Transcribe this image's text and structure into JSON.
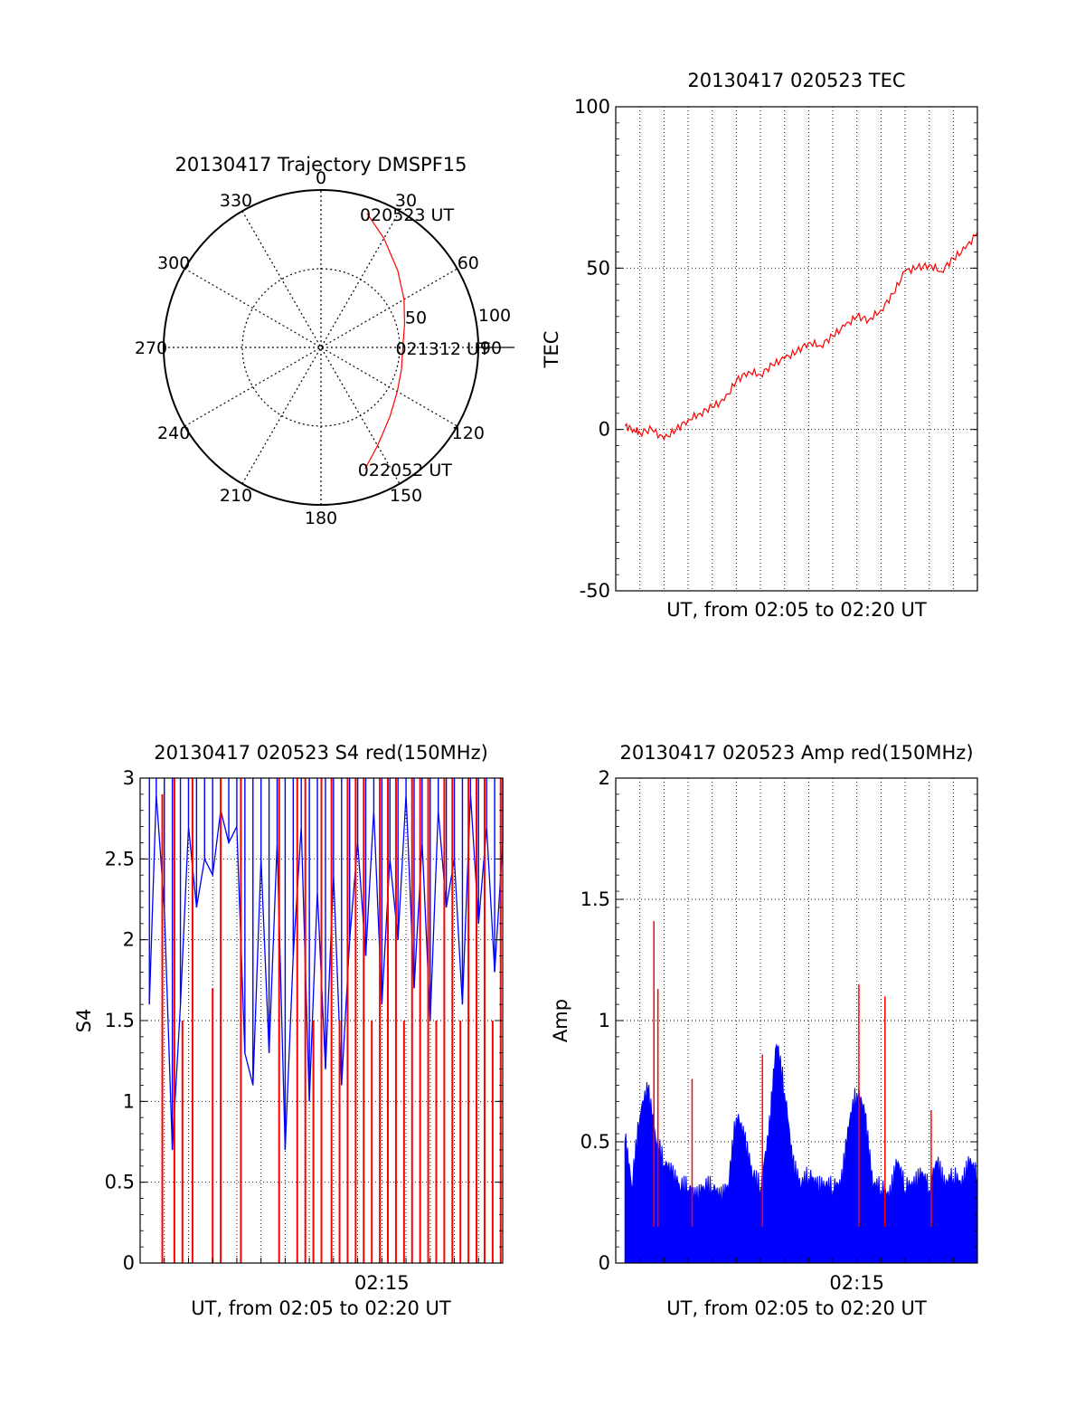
{
  "chart_data": [
    {
      "type": "polar",
      "title": "20130417 Trajectory DMSPF15",
      "azimuth_labels": [
        "0",
        "30",
        "60",
        "90",
        "120",
        "150",
        "180",
        "210",
        "240",
        "270",
        "300",
        "330"
      ],
      "radial_labels": [
        "50",
        "100"
      ],
      "rlim": [
        0,
        100
      ],
      "grid": true,
      "track_color": "#ff0000",
      "track": {
        "azimuth": [
          19,
          30,
          45,
          60,
          75,
          90,
          105,
          120,
          135,
          150,
          160
        ],
        "radius": [
          90,
          80,
          69,
          61,
          55,
          52,
          53,
          56,
          62,
          72,
          82
        ]
      },
      "annotations": [
        {
          "text": "020523 UT",
          "azimuth": 19,
          "radius": 90
        },
        {
          "text": "021312 UT",
          "azimuth": 90,
          "radius": 52
        },
        {
          "text": "022052 UT",
          "azimuth": 160,
          "radius": 82
        }
      ]
    },
    {
      "type": "line",
      "title": "20130417 020523 TEC",
      "xlabel": "UT, from 02:05 to 02:20 UT",
      "ylabel": "TEC",
      "xlim": [
        "02:05",
        "02:20"
      ],
      "ylim": [
        -50,
        100
      ],
      "yticks": [
        "100",
        "50",
        "0",
        "-50"
      ],
      "grid": true,
      "series": [
        {
          "color": "#ff0000",
          "x": [
            "02:05:23",
            "02:05:45",
            "02:06:00",
            "02:06:30",
            "02:07:00",
            "02:07:30",
            "02:08:00",
            "02:08:30",
            "02:09:00",
            "02:09:30",
            "02:10:00",
            "02:10:30",
            "02:11:00",
            "02:11:30",
            "02:12:00",
            "02:12:30",
            "02:13:00",
            "02:13:30",
            "02:14:00",
            "02:14:30",
            "02:15:00",
            "02:15:30",
            "02:16:00",
            "02:16:30",
            "02:17:00",
            "02:17:30",
            "02:18:00",
            "02:18:30",
            "02:19:00",
            "02:19:30",
            "02:20:00"
          ],
          "y": [
            1,
            0,
            -1,
            0,
            -3,
            0,
            3,
            5,
            7,
            9,
            15,
            18,
            17,
            20,
            22,
            24,
            27,
            26,
            29,
            32,
            35,
            34,
            37,
            42,
            49,
            50,
            51,
            49,
            53,
            56,
            61
          ]
        }
      ]
    },
    {
      "type": "line",
      "title": "20130417 020523 S4 red(150MHz)",
      "xlabel": "UT, from 02:05 to 02:20 UT",
      "ylabel": "S4",
      "xlim": [
        "02:05",
        "02:20"
      ],
      "ylim": [
        0,
        3
      ],
      "xticks": [
        "02:15"
      ],
      "yticks": [
        "3",
        "2.5",
        "2",
        "1.5",
        "1",
        "0.5",
        "0"
      ],
      "grid": true,
      "series": [
        {
          "color": "#0000ff",
          "x": [
            "02:05:23",
            "02:05:40",
            "02:06:00",
            "02:06:20",
            "02:06:40",
            "02:07:00",
            "02:07:20",
            "02:07:40",
            "02:08:00",
            "02:08:20",
            "02:08:40",
            "02:09:00",
            "02:09:20",
            "02:09:40",
            "02:10:00",
            "02:10:20",
            "02:10:40",
            "02:11:00",
            "02:11:20",
            "02:11:40",
            "02:12:00",
            "02:12:20",
            "02:12:40",
            "02:13:00",
            "02:13:20",
            "02:13:40",
            "02:14:00",
            "02:14:20",
            "02:14:40",
            "02:15:00",
            "02:15:20",
            "02:15:40",
            "02:16:00",
            "02:16:20",
            "02:16:40",
            "02:17:00",
            "02:17:20",
            "02:17:40",
            "02:18:00",
            "02:18:20",
            "02:18:40",
            "02:19:00",
            "02:19:20",
            "02:19:40",
            "02:20:00"
          ],
          "y": [
            1.6,
            2.9,
            2.2,
            0.7,
            1.6,
            2.7,
            2.2,
            2.5,
            2.4,
            2.8,
            2.6,
            2.7,
            1.3,
            1.1,
            2.5,
            1.3,
            2.6,
            0.7,
            1.9,
            2.7,
            1.0,
            2.3,
            1.2,
            2.4,
            1.1,
            2.0,
            2.6,
            1.9,
            2.8,
            1.6,
            2.5,
            2.0,
            2.9,
            1.7,
            2.6,
            1.5,
            2.8,
            2.2,
            2.5,
            1.6,
            2.9,
            2.1,
            2.7,
            1.8,
            2.6
          ]
        },
        {
          "color": "#ff0000",
          "x": [
            "02:05:55",
            "02:06:25",
            "02:06:45",
            "02:07:10",
            "02:08:00",
            "02:08:20",
            "02:09:10",
            "02:10:45",
            "02:11:30",
            "02:11:50",
            "02:12:10",
            "02:12:30",
            "02:12:55",
            "02:13:15",
            "02:13:35",
            "02:13:55",
            "02:14:15",
            "02:14:35",
            "02:14:55",
            "02:15:15",
            "02:15:35",
            "02:15:55",
            "02:16:15",
            "02:16:35",
            "02:16:55",
            "02:17:15",
            "02:17:35",
            "02:17:55",
            "02:18:15",
            "02:18:35",
            "02:18:55",
            "02:19:15",
            "02:19:35",
            "02:19:55"
          ],
          "y": [
            2.9,
            3.0,
            1.5,
            3.0,
            1.7,
            3.0,
            3.0,
            3.0,
            3.0,
            3.0,
            1.5,
            3.0,
            3.0,
            1.5,
            3.0,
            3.0,
            3.0,
            1.5,
            3.0,
            3.0,
            3.0,
            1.5,
            3.0,
            3.0,
            3.0,
            1.5,
            3.0,
            3.0,
            1.5,
            3.0,
            3.0,
            3.0,
            1.5,
            3.0
          ]
        }
      ]
    },
    {
      "type": "line",
      "title": "20130417 020523 Amp red(150MHz)",
      "xlabel": "UT, from 02:05 to 02:20 UT",
      "ylabel": "Amp",
      "xlim": [
        "02:05",
        "02:20"
      ],
      "ylim": [
        0,
        2
      ],
      "xticks": [
        "02:15"
      ],
      "yticks": [
        "2",
        "1.5",
        "1",
        "0.5",
        "0"
      ],
      "grid": true,
      "series": [
        {
          "color": "#0000ff",
          "x": [
            "02:05:23",
            "02:05:40",
            "02:06:00",
            "02:06:20",
            "02:06:40",
            "02:07:00",
            "02:07:20",
            "02:07:40",
            "02:08:00",
            "02:08:20",
            "02:08:40",
            "02:09:00",
            "02:09:20",
            "02:09:40",
            "02:10:00",
            "02:10:20",
            "02:10:40",
            "02:11:00",
            "02:11:20",
            "02:11:40",
            "02:12:00",
            "02:12:20",
            "02:12:40",
            "02:13:00",
            "02:13:20",
            "02:13:40",
            "02:14:00",
            "02:14:20",
            "02:14:40",
            "02:15:00",
            "02:15:20",
            "02:15:40",
            "02:16:00",
            "02:16:20",
            "02:16:40",
            "02:17:00",
            "02:17:20",
            "02:17:40",
            "02:18:00",
            "02:18:20",
            "02:18:40",
            "02:19:00",
            "02:19:20",
            "02:19:40",
            "02:20:00"
          ],
          "y": [
            0.5,
            0.3,
            0.6,
            0.7,
            0.5,
            0.4,
            0.35,
            0.3,
            0.3,
            0.25,
            0.3,
            0.3,
            0.25,
            0.3,
            0.6,
            0.5,
            0.35,
            0.3,
            0.5,
            0.9,
            0.7,
            0.4,
            0.3,
            0.35,
            0.3,
            0.3,
            0.3,
            0.3,
            0.55,
            0.7,
            0.6,
            0.3,
            0.3,
            0.25,
            0.4,
            0.3,
            0.3,
            0.35,
            0.3,
            0.4,
            0.3,
            0.35,
            0.3,
            0.4,
            0.35
          ]
        },
        {
          "color": "#ff0000",
          "x": [
            "02:06:35",
            "02:06:45",
            "02:08:10",
            "02:11:05",
            "02:15:05",
            "02:16:10",
            "02:18:05"
          ],
          "y": [
            1.41,
            1.13,
            0.76,
            0.86,
            1.15,
            1.1,
            0.63
          ]
        }
      ]
    }
  ]
}
